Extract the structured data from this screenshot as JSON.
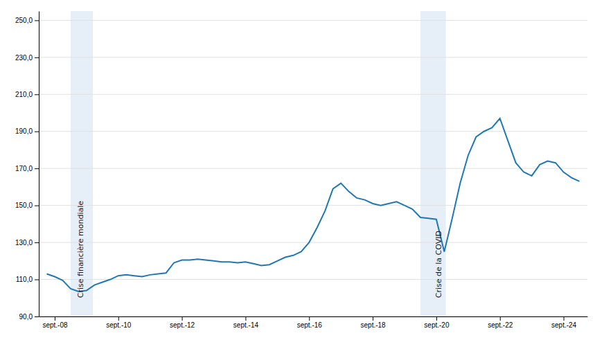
{
  "chart_data": {
    "type": "line",
    "grid": true,
    "xlim": [
      2007.5,
      2024.75
    ],
    "xticks": [
      {
        "value": 2008,
        "label": "sept.-08"
      },
      {
        "value": 2010,
        "label": "sept.-10"
      },
      {
        "value": 2012,
        "label": "sept.-12"
      },
      {
        "value": 2014,
        "label": "sept.-14"
      },
      {
        "value": 2016,
        "label": "sept.-16"
      },
      {
        "value": 2018,
        "label": "sept.-18"
      },
      {
        "value": 2020,
        "label": "sept.-20"
      },
      {
        "value": 2022,
        "label": "sept.-22"
      },
      {
        "value": 2024,
        "label": "sept.-24"
      }
    ],
    "ylim": [
      90,
      255
    ],
    "yticks": [
      {
        "value": 90.0,
        "label": "90,0"
      },
      {
        "value": 110.0,
        "label": "110,0"
      },
      {
        "value": 130.0,
        "label": "130,0"
      },
      {
        "value": 150.0,
        "label": "150,0"
      },
      {
        "value": 170.0,
        "label": "170,0"
      },
      {
        "value": 190.0,
        "label": "190,0"
      },
      {
        "value": 210.0,
        "label": "210,0"
      },
      {
        "value": 230.0,
        "label": "230,0"
      },
      {
        "value": 250.0,
        "label": "250,0"
      }
    ],
    "shaded_regions": [
      {
        "x": [
          2008.5,
          2009.2
        ]
      },
      {
        "x": [
          2019.5,
          2020.3
        ]
      }
    ],
    "annotations": [
      {
        "text": "Crise financière mondiale",
        "x": 2008.83,
        "y": 100.0
      },
      {
        "text": "Crise de la COVID",
        "x": 2020.08,
        "y": 100.0
      }
    ],
    "x": [
      2007.75,
      2008.0,
      2008.25,
      2008.5,
      2008.75,
      2009.0,
      2009.25,
      2009.5,
      2009.75,
      2010.0,
      2010.25,
      2010.5,
      2010.75,
      2011.0,
      2011.25,
      2011.5,
      2011.75,
      2012.0,
      2012.25,
      2012.5,
      2012.75,
      2013.0,
      2013.25,
      2013.5,
      2013.75,
      2014.0,
      2014.25,
      2014.5,
      2014.75,
      2015.0,
      2015.25,
      2015.5,
      2015.75,
      2016.0,
      2016.25,
      2016.5,
      2016.75,
      2017.0,
      2017.25,
      2017.5,
      2017.75,
      2018.0,
      2018.25,
      2018.5,
      2018.75,
      2019.0,
      2019.25,
      2019.5,
      2019.75,
      2020.0,
      2020.25,
      2020.5,
      2020.75,
      2021.0,
      2021.25,
      2021.5,
      2021.75,
      2022.0,
      2022.25,
      2022.5,
      2022.75,
      2023.0,
      2023.25,
      2023.5,
      2023.75,
      2024.0,
      2024.25,
      2024.5
    ],
    "values": [
      113.0,
      111.5,
      109.5,
      105.0,
      103.5,
      104.0,
      107.0,
      108.5,
      110.0,
      112.0,
      112.5,
      112.0,
      111.5,
      112.5,
      113.0,
      113.5,
      119.0,
      120.5,
      120.5,
      121.0,
      120.5,
      120.0,
      119.5,
      119.5,
      119.0,
      119.5,
      118.5,
      117.5,
      118.0,
      120.0,
      122.0,
      123.0,
      125.0,
      130.0,
      138.0,
      147.0,
      159.0,
      162.0,
      157.5,
      154.0,
      153.0,
      151.0,
      150.0,
      151.0,
      152.0,
      150.0,
      148.0,
      143.5,
      143.0,
      142.5,
      125.0,
      143.0,
      162.0,
      177.0,
      187.0,
      190.0,
      192.0,
      197.0,
      185.0,
      173.0,
      168.0,
      166.0,
      172.0,
      174.0,
      173.0,
      168.0,
      165.0,
      163.0
    ]
  }
}
